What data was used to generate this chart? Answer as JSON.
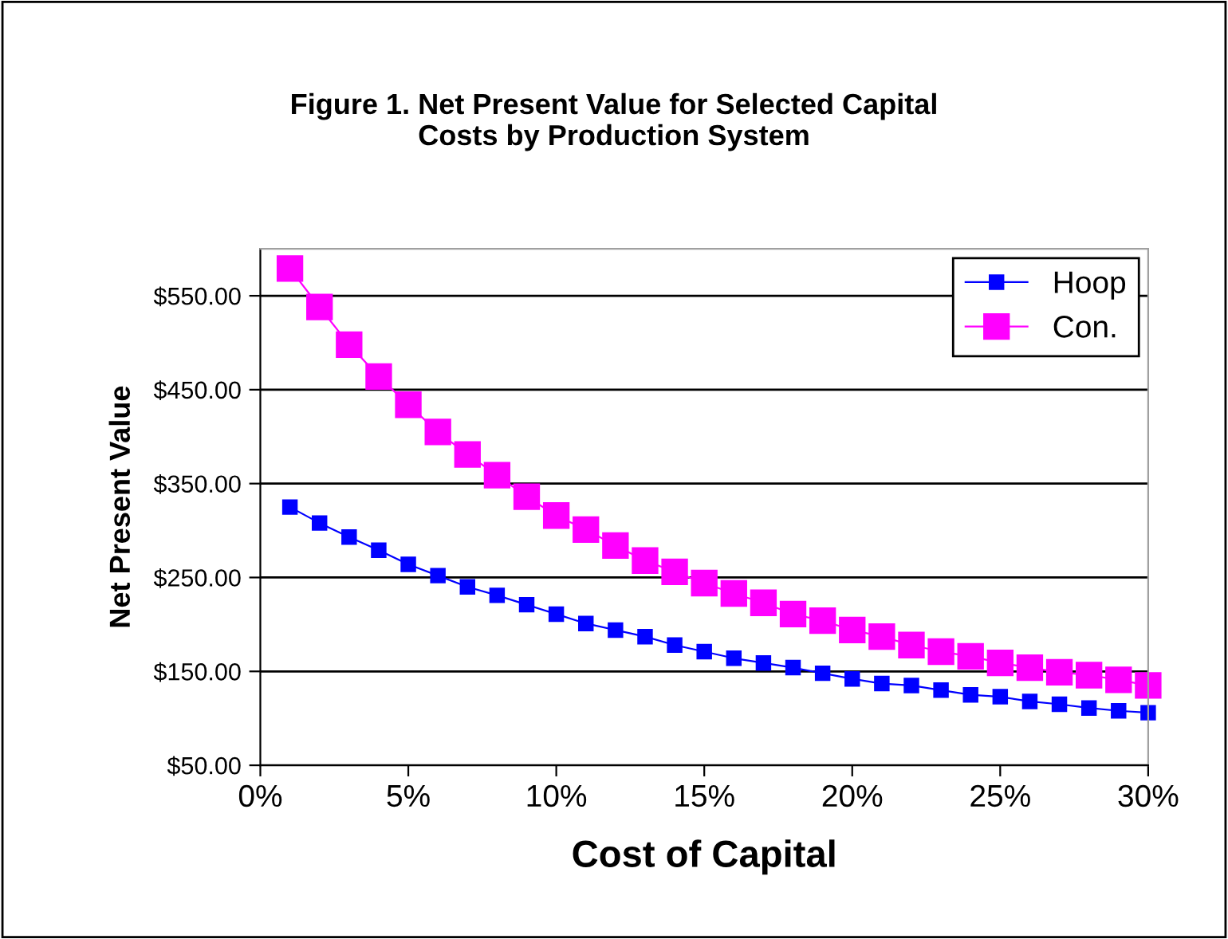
{
  "chart_data": {
    "type": "line",
    "title": "Figure 1. Net Present Value for Selected Capital\nCosts by Production System",
    "xlabel": "Cost of Capital",
    "ylabel": "Net Present Value",
    "x": [
      1,
      2,
      3,
      4,
      5,
      6,
      7,
      8,
      9,
      10,
      11,
      12,
      13,
      14,
      15,
      16,
      17,
      18,
      19,
      20,
      21,
      22,
      23,
      24,
      25,
      26,
      27,
      28,
      29,
      30
    ],
    "series": [
      {
        "name": "Hoop",
        "color": "#0000ff",
        "values": [
          325,
          308,
          293,
          279,
          264,
          252,
          240,
          231,
          221,
          211,
          201,
          194,
          187,
          178,
          171,
          164,
          159,
          154,
          148,
          142,
          137,
          135,
          130,
          125,
          123,
          118,
          115,
          111,
          108,
          106
        ]
      },
      {
        "name": "Con.",
        "color": "#ff00ff",
        "values": [
          579,
          538,
          498,
          464,
          434,
          405,
          381,
          359,
          336,
          316,
          301,
          284,
          268,
          256,
          244,
          233,
          223,
          211,
          204,
          194,
          187,
          178,
          171,
          166,
          159,
          154,
          149,
          146,
          141,
          135
        ]
      }
    ],
    "xlim": [
      0,
      30
    ],
    "xticks": [
      {
        "value": 0,
        "label": "0%"
      },
      {
        "value": 5,
        "label": "5%"
      },
      {
        "value": 10,
        "label": "10%"
      },
      {
        "value": 15,
        "label": "15%"
      },
      {
        "value": 20,
        "label": "20%"
      },
      {
        "value": 25,
        "label": "25%"
      },
      {
        "value": 30,
        "label": "30%"
      }
    ],
    "ylim": [
      50,
      600
    ],
    "yticks": [
      {
        "value": 50,
        "label": "$50.00"
      },
      {
        "value": 150,
        "label": "$150.00"
      },
      {
        "value": 250,
        "label": "$250.00"
      },
      {
        "value": 350,
        "label": "$350.00"
      },
      {
        "value": 450,
        "label": "$450.00"
      },
      {
        "value": 550,
        "label": "$550.00"
      }
    ],
    "grid": "y",
    "legend": "top right",
    "marker": "square",
    "line_style": "solid"
  }
}
